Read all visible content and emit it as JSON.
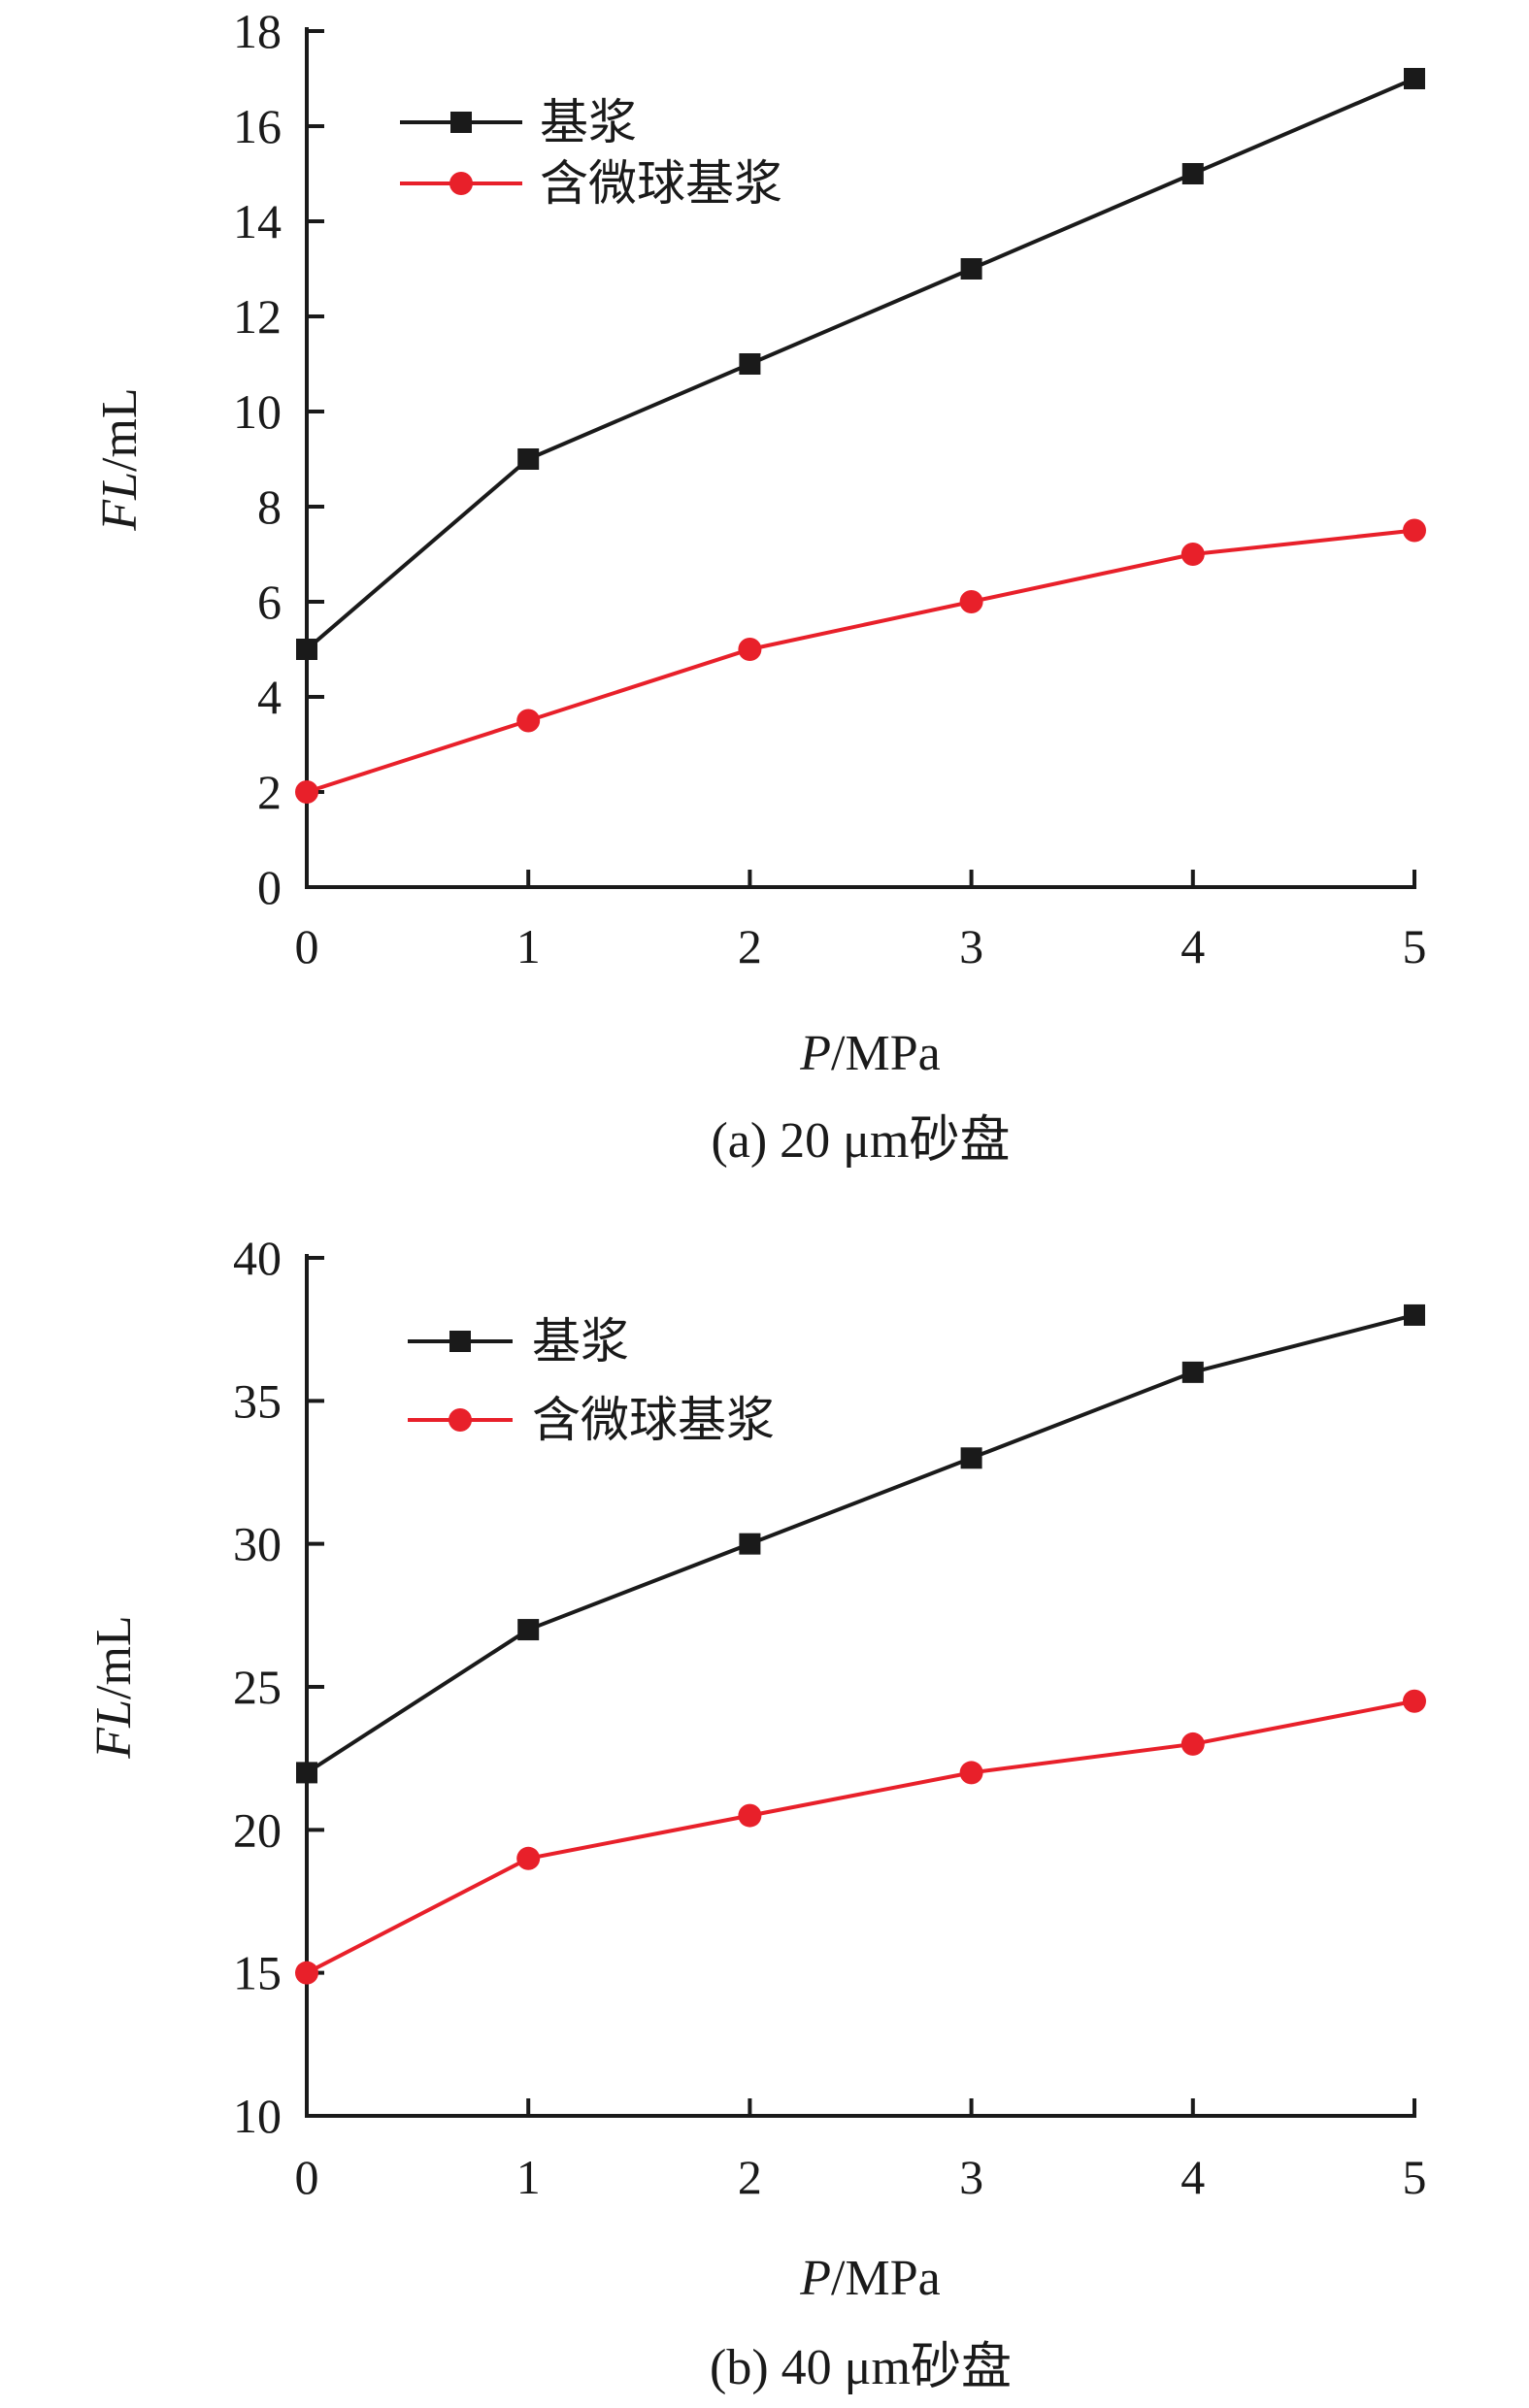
{
  "chart_data": [
    {
      "type": "line",
      "caption": "(a) 20 μm砂盘",
      "xlabel_italic": "P",
      "xlabel_unit": "/MPa",
      "ylabel_italic": "FL",
      "ylabel_unit": "/mL",
      "x": [
        0,
        1,
        2,
        3,
        4,
        5
      ],
      "xlim": [
        0,
        5
      ],
      "xticks": [
        0,
        1,
        2,
        3,
        4,
        5
      ],
      "ylim": [
        0,
        18
      ],
      "yticks": [
        0,
        2,
        4,
        6,
        8,
        10,
        12,
        14,
        16,
        18
      ],
      "grid": false,
      "legend": "top-left",
      "series": [
        {
          "name": "基浆",
          "marker": "square",
          "color": "#1a1a1a",
          "values": [
            5,
            9,
            11,
            13,
            15,
            17
          ]
        },
        {
          "name": "含微球基浆",
          "marker": "circle",
          "color": "#e8202a",
          "values": [
            2,
            3.5,
            5,
            6,
            7,
            7.5
          ]
        }
      ]
    },
    {
      "type": "line",
      "caption": "(b) 40 μm砂盘",
      "xlabel_italic": "P",
      "xlabel_unit": "/MPa",
      "ylabel_italic": "FL",
      "ylabel_unit": "/mL",
      "x": [
        0,
        1,
        2,
        3,
        4,
        5
      ],
      "xlim": [
        0,
        5
      ],
      "xticks": [
        0,
        1,
        2,
        3,
        4,
        5
      ],
      "ylim": [
        10,
        40
      ],
      "yticks": [
        10,
        15,
        20,
        25,
        30,
        35,
        40
      ],
      "grid": false,
      "legend": "top-left",
      "series": [
        {
          "name": "基浆",
          "marker": "square",
          "color": "#1a1a1a",
          "values": [
            22,
            27,
            30,
            33,
            36,
            38
          ]
        },
        {
          "name": "含微球基浆",
          "marker": "circle",
          "color": "#e8202a",
          "values": [
            15,
            19,
            20.5,
            22,
            23,
            24.5
          ]
        }
      ]
    }
  ]
}
